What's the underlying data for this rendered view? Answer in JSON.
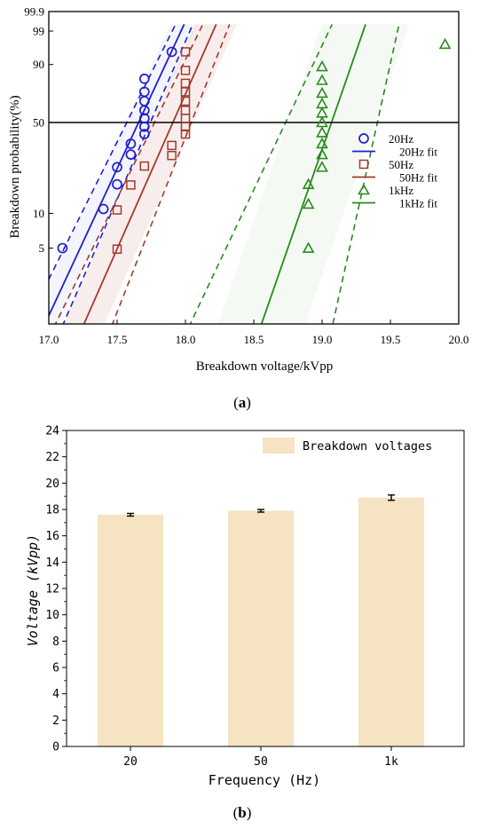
{
  "chart_data": [
    {
      "type": "scatter",
      "panel_label": "(a)",
      "xlabel": "Breakdown voltage/kVpp",
      "ylabel": "Breakdown probability(%)",
      "xlim": [
        17.0,
        20.0
      ],
      "x_ticks": [
        "17.0",
        "17.5",
        "18.0",
        "18.5",
        "19.0",
        "19.5",
        "20.0"
      ],
      "y_scale": "weibull-probability",
      "y_ticks": [
        "99.9",
        "99",
        "90",
        "50",
        "10",
        "5"
      ],
      "reference_line_y": 50,
      "legend_position": "right",
      "series": [
        {
          "name": "20Hz",
          "color": "#1f1fcc",
          "marker": "circle",
          "x": [
            17.1,
            17.4,
            17.5,
            17.5,
            17.6,
            17.6,
            17.7,
            17.7,
            17.7,
            17.7,
            17.7,
            17.7,
            17.7,
            17.9
          ],
          "y": [
            5,
            10.9,
            17.5,
            24,
            30,
            36,
            42,
            47,
            53,
            59,
            66,
            73,
            82,
            95
          ]
        },
        {
          "name": "20Hz fit",
          "color": "#1f1fcc"
        },
        {
          "name": "50Hz",
          "color": "#a33a2b",
          "marker": "square",
          "x": [
            17.5,
            17.5,
            17.6,
            17.7,
            17.9,
            17.9,
            18.0,
            18.0,
            18.0,
            18.0,
            18.0,
            18.0,
            18.0,
            18.0,
            18.0
          ],
          "y": [
            4.9,
            10.7,
            17.3,
            24.5,
            29.5,
            35,
            42,
            47,
            53,
            59,
            66,
            73,
            79,
            87,
            95
          ]
        },
        {
          "name": "50Hz fit",
          "color": "#a33a2b"
        },
        {
          "name": "1kHz",
          "color": "#2a8a1e",
          "marker": "triangle",
          "x": [
            18.9,
            18.9,
            18.9,
            19.0,
            19.0,
            19.0,
            19.0,
            19.0,
            19.0,
            19.0,
            19.0,
            19.0,
            19.0,
            19.9
          ],
          "y": [
            5,
            12,
            17.5,
            24,
            30,
            36,
            43,
            50,
            57,
            64,
            72,
            81,
            89,
            97
          ]
        },
        {
          "name": "1kHz fit",
          "color": "#2a8a1e"
        }
      ]
    },
    {
      "type": "bar",
      "panel_label": "(b)",
      "categories": [
        "20",
        "50",
        "1k"
      ],
      "values": [
        17.6,
        17.9,
        18.9
      ],
      "errors": [
        0.1,
        0.1,
        0.2
      ],
      "xlabel": "Frequency (Hz)",
      "ylabel": "Voltage (kVpp)",
      "ylim": [
        0,
        24
      ],
      "y_ticks": [
        "0",
        "2",
        "4",
        "6",
        "8",
        "10",
        "12",
        "14",
        "16",
        "18",
        "20",
        "22",
        "24"
      ],
      "legend": [
        "Breakdown voltages"
      ],
      "legend_position": "top-right",
      "bar_color": "#f5e3c1"
    }
  ],
  "panel_labels": {
    "a": "a",
    "b": "b"
  }
}
